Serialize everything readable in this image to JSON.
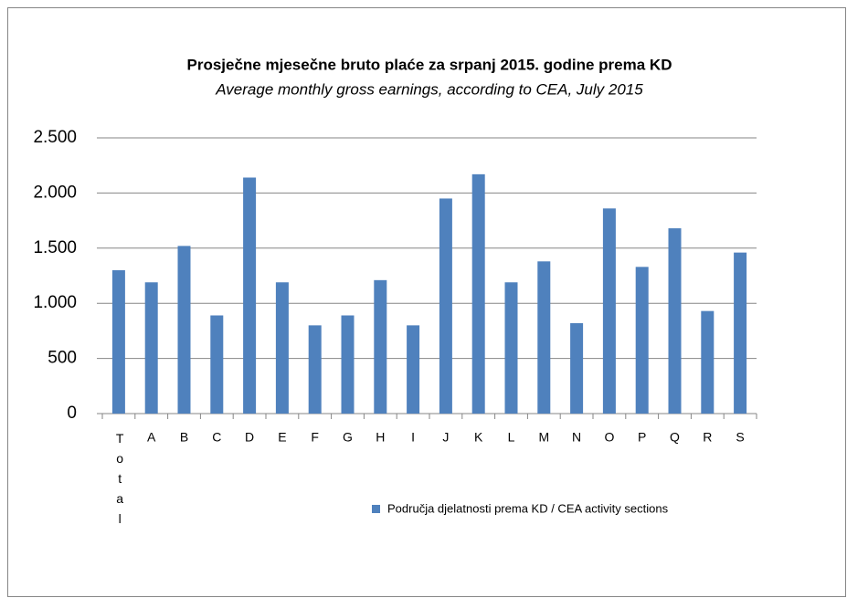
{
  "chart_data": {
    "type": "bar",
    "title": "Prosječne mjesečne bruto plaće za  srpanj 2015. godine prema KD",
    "subtitle": "Average monthly gross  earnings, according to CEA, July 2015",
    "categories": [
      "Total",
      "A",
      "B",
      "C",
      "D",
      "E",
      "F",
      "G",
      "H",
      "I",
      "J",
      "K",
      "L",
      "M",
      "N",
      "O",
      "P",
      "Q",
      "R",
      "S"
    ],
    "series": [
      {
        "name": "Područja djelatnosti prema KD / CEA activity sections",
        "color": "#4f81bd",
        "values": [
          1300,
          1190,
          1520,
          890,
          2140,
          1190,
          800,
          890,
          1210,
          800,
          1950,
          2170,
          1190,
          1380,
          820,
          1860,
          1330,
          1680,
          930,
          1460
        ]
      }
    ],
    "ylim": [
      0,
      2500
    ],
    "yticks": [
      0,
      500,
      {
        "value": 1000,
        "label": "1.000"
      },
      {
        "value": 1500,
        "label": "1.500"
      },
      {
        "value": 2000,
        "label": "2.000"
      },
      {
        "value": 2500,
        "label": "2.500"
      }
    ],
    "grid": true,
    "legend": "bottom"
  }
}
